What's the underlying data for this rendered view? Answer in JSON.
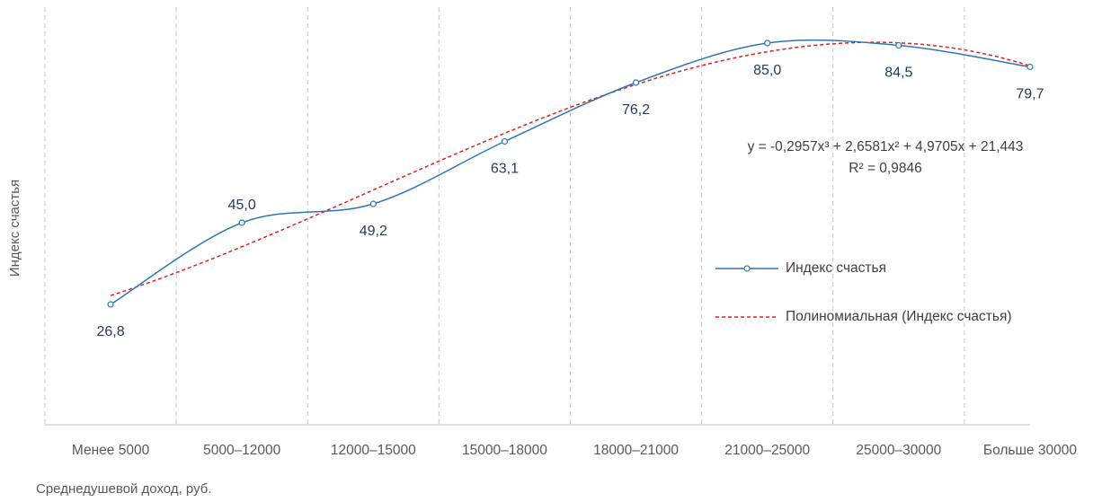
{
  "chart_data": {
    "type": "line",
    "categories": [
      "Менее 5000",
      "5000–12000",
      "12000–15000",
      "15000–18000",
      "18000–21000",
      "21000–25000",
      "25000–30000",
      "Больше 30000"
    ],
    "series": [
      {
        "name": "Индекс счастья",
        "values": [
          26.8,
          45.0,
          49.2,
          63.1,
          76.2,
          85.0,
          84.5,
          79.7
        ],
        "labels": [
          "26,8",
          "45,0",
          "49,2",
          "63,1",
          "76,2",
          "85,0",
          "84,5",
          "79,7"
        ],
        "color": "#2E75B6"
      },
      {
        "name": "Полиномиальная (Индекс счастья)",
        "trendline": "polynomial",
        "color": "#E02020"
      }
    ],
    "trendline": {
      "equation": "y = -0,2957x³ + 2,6581x² + 4,9705x + 21,443",
      "r2": "R² = 0,9846",
      "coefficients": [
        -0.2957,
        2.6581,
        4.9705,
        21.443
      ]
    },
    "xlabel": "Среднедушевой доход, руб.",
    "ylabel": "Индекс счастья",
    "legend_position": "right",
    "grid": "vertical dashed"
  }
}
